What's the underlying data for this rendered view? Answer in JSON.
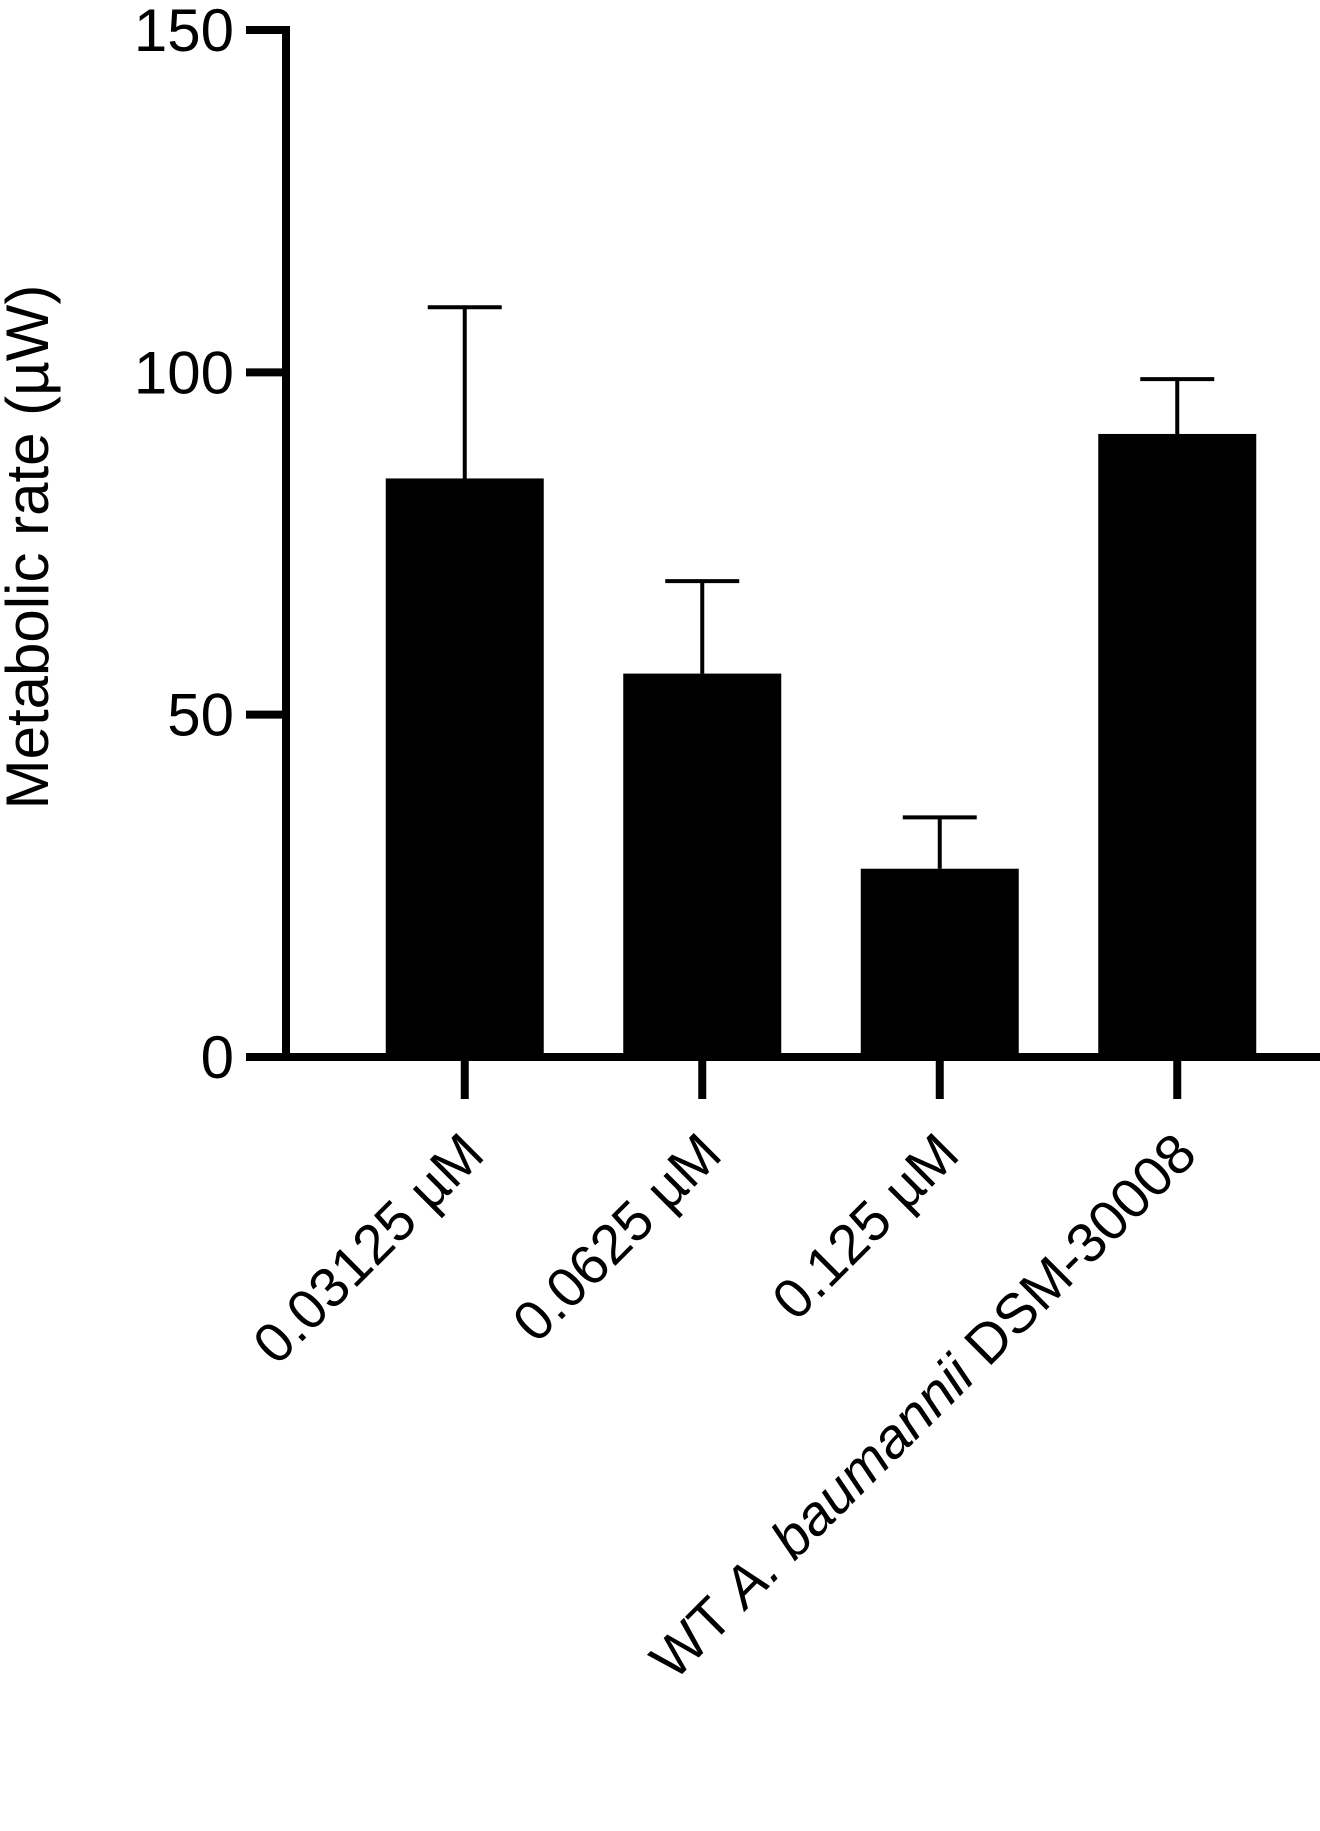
{
  "chart_data": {
    "type": "bar",
    "title": "",
    "xlabel": "",
    "ylabel": "Metabolic rate (µW)",
    "ylim": [
      0,
      150
    ],
    "yticks": [
      "0",
      "50",
      "100",
      "150"
    ],
    "categories": [
      {
        "parts": [
          {
            "text": "0.03125 µM",
            "italic": false
          }
        ]
      },
      {
        "parts": [
          {
            "text": "0.0625 µM",
            "italic": false
          }
        ]
      },
      {
        "parts": [
          {
            "text": "0.125 µM",
            "italic": false
          }
        ]
      },
      {
        "parts": [
          {
            "text": "WT ",
            "italic": false
          },
          {
            "text": "A. baumannii",
            "italic": true
          },
          {
            "text": " DSM-30008",
            "italic": false
          }
        ]
      }
    ],
    "series": [
      {
        "values": [
          84.5,
          56,
          27.5,
          91
        ],
        "error": [
          25,
          13.5,
          7.5,
          8
        ],
        "color": "#000000"
      }
    ],
    "grid": false,
    "legend": "none"
  }
}
